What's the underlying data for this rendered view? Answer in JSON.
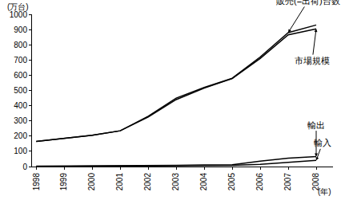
{
  "chart_data": {
    "type": "line",
    "y_label": "(万台)",
    "x_label": "(年)",
    "x": [
      1998,
      1999,
      2000,
      2001,
      2002,
      2003,
      2004,
      2005,
      2006,
      2007,
      2008
    ],
    "series": [
      {
        "name": "販売(=出荷)台数",
        "color": "#000000",
        "values": [
          165,
          185,
          205,
          235,
          330,
          450,
          520,
          580,
          720,
          880,
          930
        ]
      },
      {
        "name": "市場規模",
        "color": "#000000",
        "values": [
          165,
          185,
          205,
          235,
          325,
          440,
          515,
          578,
          710,
          865,
          905
        ]
      },
      {
        "name": "輸出",
        "color": "#000000",
        "values": [
          2,
          3,
          3,
          3,
          5,
          8,
          10,
          12,
          35,
          55,
          65
        ]
      },
      {
        "name": "輸入",
        "color": "#000000",
        "values": [
          0,
          1,
          1,
          1,
          2,
          3,
          5,
          8,
          15,
          28,
          40
        ]
      }
    ],
    "xlim": [
      1997.85,
      2008.6
    ],
    "xticks": [
      1998,
      1999,
      2000,
      2001,
      2002,
      2003,
      2004,
      2005,
      2006,
      2007,
      2008
    ],
    "ylim": [
      0,
      1000
    ],
    "yticks": [
      0,
      100,
      200,
      300,
      400,
      500,
      600,
      700,
      800,
      900,
      1000
    ],
    "grid": false
  }
}
